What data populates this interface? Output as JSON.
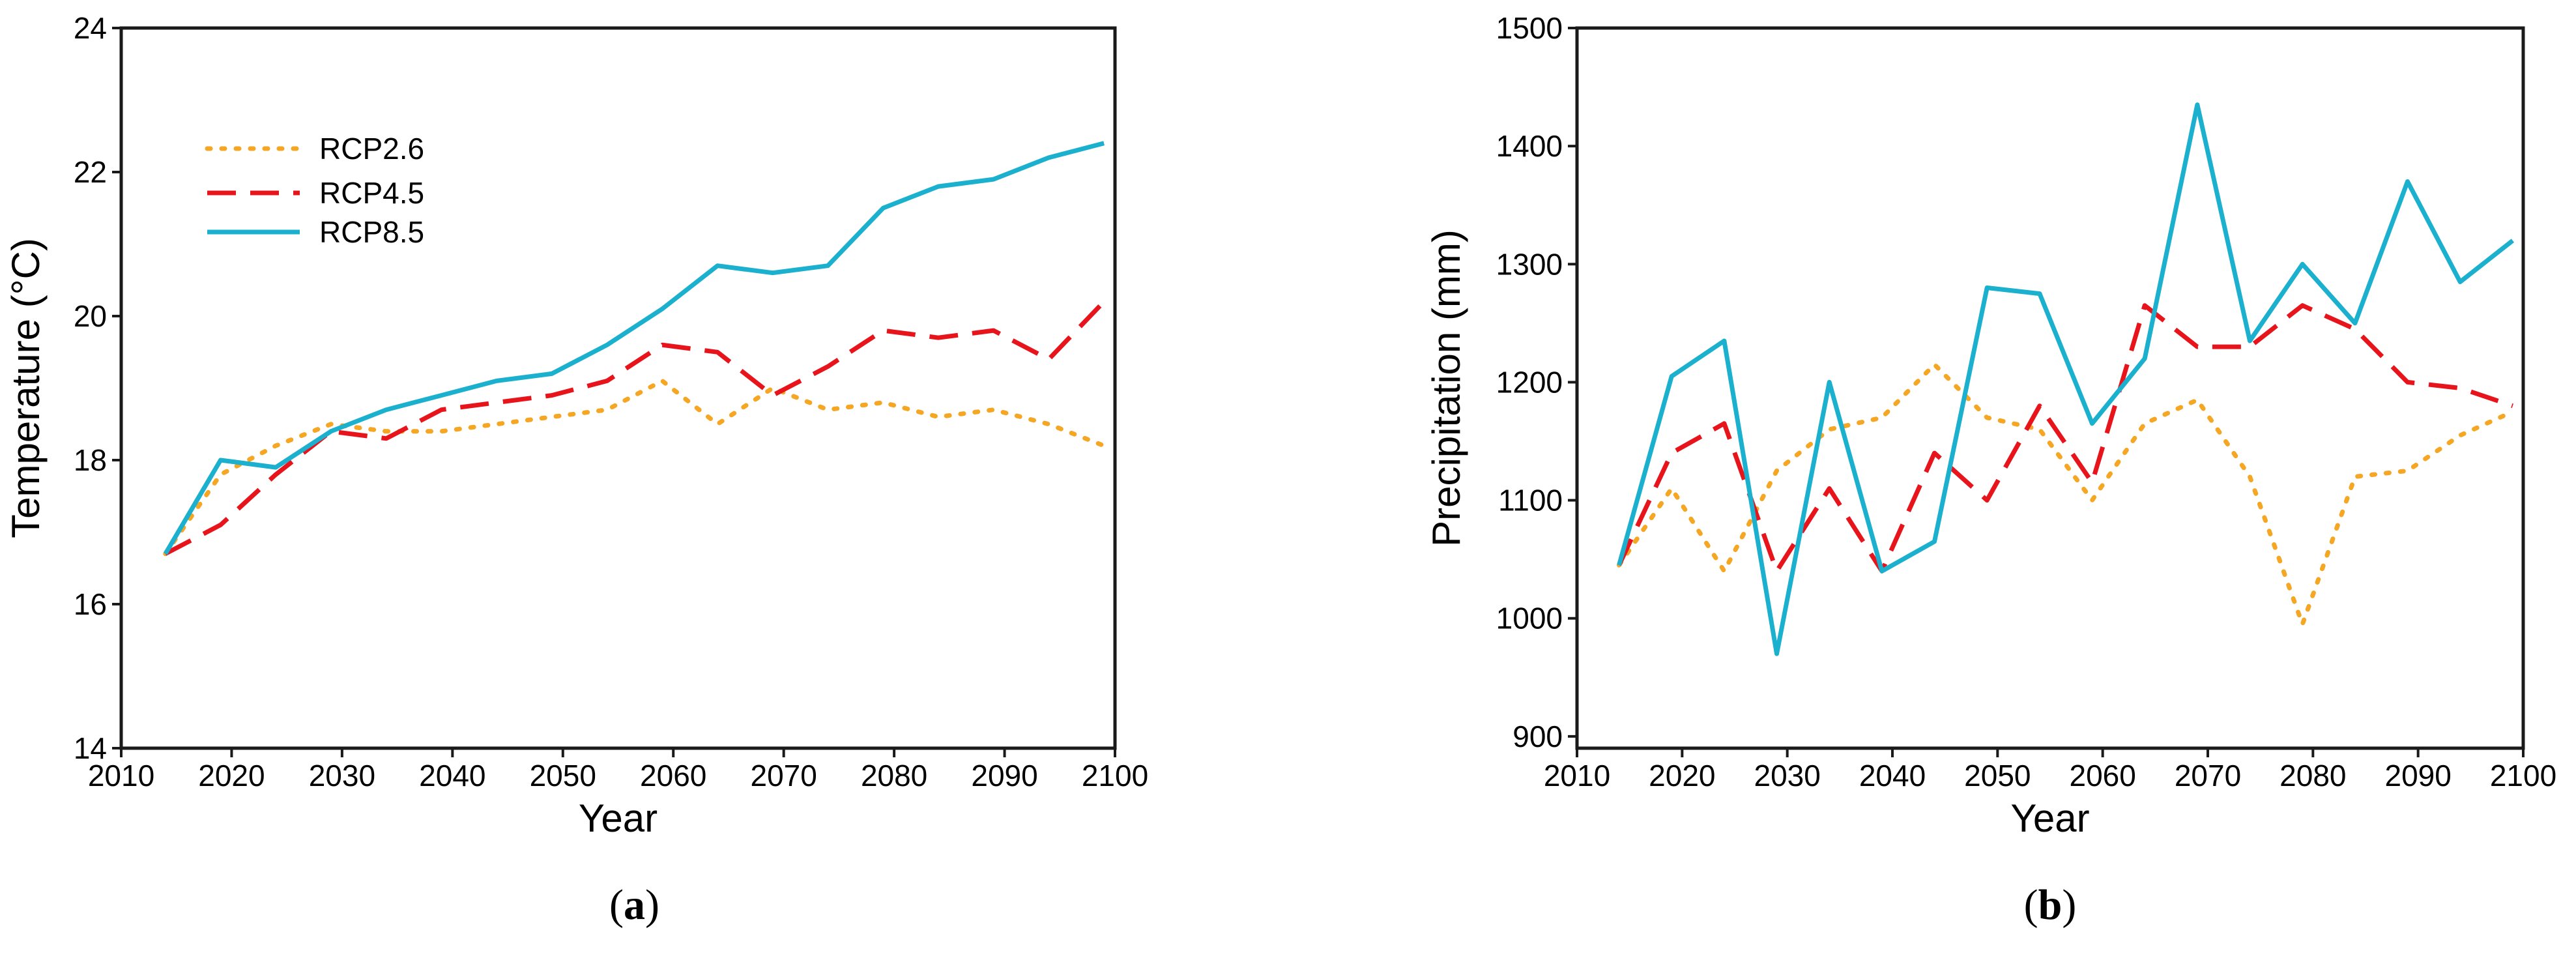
{
  "chart_data": [
    {
      "type": "line",
      "panel_label": "a",
      "title": "",
      "xlabel": "Year",
      "ylabel": "Temperature (°C)",
      "xlim": [
        2010,
        2100
      ],
      "ylim": [
        14,
        24
      ],
      "xticks": [
        2010,
        2020,
        2030,
        2040,
        2050,
        2060,
        2070,
        2080,
        2090,
        2100
      ],
      "yticks": [
        14,
        16,
        18,
        20,
        22,
        24
      ],
      "legend_position": "top-left",
      "x": [
        2014,
        2019,
        2024,
        2029,
        2034,
        2039,
        2044,
        2049,
        2054,
        2059,
        2064,
        2069,
        2074,
        2079,
        2084,
        2089,
        2094,
        2099
      ],
      "series": [
        {
          "name": "RCP2.6",
          "color": "#F5A623",
          "style": "dotted",
          "values": [
            16.7,
            17.8,
            18.2,
            18.5,
            18.4,
            18.4,
            18.5,
            18.6,
            18.7,
            19.1,
            18.5,
            19.0,
            18.7,
            18.8,
            18.6,
            18.7,
            18.5,
            18.2
          ]
        },
        {
          "name": "RCP4.5",
          "color": "#E8141B",
          "style": "dashed",
          "values": [
            16.7,
            17.1,
            17.8,
            18.4,
            18.3,
            18.7,
            18.8,
            18.9,
            19.1,
            19.6,
            19.5,
            18.9,
            19.3,
            19.8,
            19.7,
            19.8,
            19.4,
            20.2
          ]
        },
        {
          "name": "RCP8.5",
          "color": "#1BB0CE",
          "style": "solid",
          "values": [
            16.7,
            18.0,
            17.9,
            18.4,
            18.7,
            18.9,
            19.1,
            19.2,
            19.6,
            20.1,
            20.7,
            20.6,
            20.7,
            21.5,
            21.8,
            21.9,
            22.2,
            22.4
          ]
        }
      ]
    },
    {
      "type": "line",
      "panel_label": "b",
      "title": "",
      "xlabel": "Year",
      "ylabel": "Precipitation (mm)",
      "xlim": [
        2010,
        2100
      ],
      "ylim": [
        890,
        1500
      ],
      "xticks": [
        2010,
        2020,
        2030,
        2040,
        2050,
        2060,
        2070,
        2080,
        2090,
        2100
      ],
      "yticks": [
        900,
        1000,
        1100,
        1200,
        1300,
        1400,
        1500
      ],
      "x": [
        2014,
        2019,
        2024,
        2029,
        2034,
        2039,
        2044,
        2049,
        2054,
        2059,
        2064,
        2069,
        2074,
        2079,
        2084,
        2089,
        2094,
        2099
      ],
      "series": [
        {
          "name": "RCP2.6",
          "color": "#F5A623",
          "style": "dotted",
          "values": [
            1045,
            1110,
            1040,
            1125,
            1160,
            1170,
            1215,
            1170,
            1160,
            1100,
            1165,
            1185,
            1120,
            995,
            1120,
            1125,
            1155,
            1175
          ]
        },
        {
          "name": "RCP4.5",
          "color": "#E8141B",
          "style": "dashed",
          "values": [
            1045,
            1140,
            1165,
            1040,
            1110,
            1040,
            1140,
            1100,
            1180,
            1115,
            1265,
            1230,
            1230,
            1265,
            1245,
            1200,
            1195,
            1180
          ]
        },
        {
          "name": "RCP8.5",
          "color": "#1BB0CE",
          "style": "solid",
          "values": [
            1045,
            1205,
            1235,
            970,
            1200,
            1040,
            1065,
            1280,
            1275,
            1165,
            1220,
            1435,
            1235,
            1300,
            1250,
            1370,
            1285,
            1320
          ]
        }
      ]
    }
  ]
}
